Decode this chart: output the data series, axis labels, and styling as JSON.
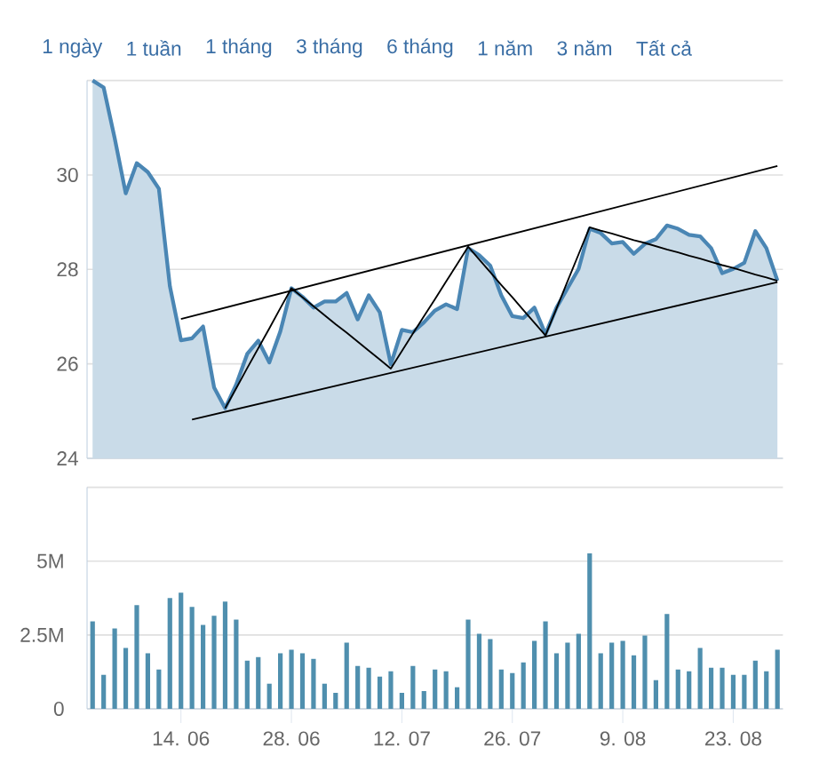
{
  "chart_data": [
    {
      "type": "other",
      "annotations": [
        "1 ngày",
        "1 tuần",
        "1 tháng",
        "3 tháng",
        "6 tháng",
        "1 năm",
        "3 năm",
        "Tất cả"
      ]
    },
    {
      "type": "area",
      "categories": [
        null,
        null,
        null,
        null,
        null,
        null,
        null,
        null,
        null,
        null,
        null,
        null,
        null,
        null,
        null,
        null,
        null,
        null,
        null,
        null,
        null,
        null,
        null,
        null,
        null,
        null,
        null,
        null,
        null,
        null,
        null,
        null,
        null,
        null,
        null,
        null,
        null,
        null,
        null,
        null,
        null,
        null,
        null,
        null,
        null,
        null,
        null,
        null,
        null,
        null,
        null,
        null,
        null,
        null,
        null,
        null,
        null,
        null,
        null,
        null,
        null,
        null,
        null
      ],
      "series": [
        {
          "type": "area",
          "color": "#4a86b4",
          "values": [
            32.0,
            31.85,
            30.78,
            29.61,
            30.25,
            30.06,
            29.71,
            27.64,
            26.5,
            26.54,
            26.79,
            25.5,
            25.06,
            25.56,
            26.21,
            26.49,
            26.03,
            26.69,
            27.6,
            27.42,
            27.19,
            27.32,
            27.32,
            27.5,
            26.94,
            27.45,
            27.09,
            25.99,
            26.72,
            26.67,
            26.88,
            27.13,
            27.26,
            27.16,
            28.45,
            28.3,
            28.08,
            27.45,
            27.01,
            26.97,
            27.19,
            26.63,
            27.19,
            27.6,
            28.01,
            28.86,
            28.77,
            28.55,
            28.58,
            28.33,
            28.54,
            28.64,
            28.93,
            28.86,
            28.73,
            28.7,
            28.45,
            27.92,
            28.01,
            28.14,
            28.81,
            28.45,
            27.76
          ]
        },
        {
          "type": "line",
          "color": "#000000",
          "values": [
            null,
            null,
            null,
            null,
            null,
            null,
            null,
            null,
            26.95,
            null,
            null,
            null,
            null,
            null,
            null,
            null,
            null,
            null,
            null,
            null,
            null,
            null,
            null,
            null,
            null,
            null,
            null,
            null,
            null,
            null,
            null,
            null,
            null,
            null,
            null,
            null,
            null,
            null,
            null,
            null,
            null,
            null,
            null,
            null,
            null,
            null,
            null,
            null,
            null,
            null,
            null,
            null,
            null,
            null,
            null,
            null,
            null,
            null,
            null,
            null,
            null,
            null,
            30.19
          ]
        },
        {
          "type": "line",
          "color": "#000000",
          "values": [
            null,
            null,
            null,
            null,
            null,
            null,
            null,
            null,
            null,
            24.82,
            null,
            null,
            null,
            null,
            null,
            null,
            null,
            null,
            null,
            null,
            null,
            null,
            null,
            null,
            null,
            null,
            null,
            null,
            null,
            null,
            null,
            null,
            null,
            null,
            null,
            null,
            null,
            null,
            null,
            null,
            null,
            null,
            null,
            null,
            null,
            null,
            null,
            null,
            null,
            null,
            null,
            null,
            null,
            null,
            null,
            null,
            null,
            null,
            null,
            null,
            null,
            null,
            27.73
          ]
        },
        {
          "type": "line",
          "color": "#000000",
          "values": [
            null,
            null,
            null,
            null,
            null,
            null,
            null,
            null,
            null,
            null,
            null,
            null,
            25.06,
            25.48,
            25.91,
            26.33,
            26.75,
            27.18,
            27.6,
            27.41,
            27.22,
            27.03,
            26.84,
            26.66,
            26.47,
            26.28,
            26.09,
            25.9,
            26.27,
            26.64,
            27.01,
            27.37,
            27.74,
            28.11,
            28.48,
            28.21,
            27.94,
            27.67,
            27.41,
            27.14,
            26.87,
            26.6,
            27.17,
            27.75,
            28.32,
            28.89,
            28.82,
            28.76,
            28.69,
            28.62,
            28.56,
            28.49,
            28.42,
            28.36,
            28.29,
            28.23,
            28.16,
            28.09,
            28.03,
            27.96,
            27.89,
            27.83,
            27.76
          ]
        }
      ],
      "ylim": [
        24,
        32
      ],
      "yticks": [
        24,
        26,
        28,
        30,
        {
          "value": 32,
          "label": null
        }
      ],
      "grid": "y",
      "tick_labels": "y"
    },
    {
      "type": "bar",
      "categories": [
        null,
        null,
        null,
        null,
        null,
        null,
        null,
        null,
        "14. 06",
        null,
        null,
        null,
        null,
        null,
        null,
        null,
        null,
        null,
        "28. 06",
        null,
        null,
        null,
        null,
        null,
        null,
        null,
        null,
        null,
        "12. 07",
        null,
        null,
        null,
        null,
        null,
        null,
        null,
        null,
        null,
        "26. 07",
        null,
        null,
        null,
        null,
        null,
        null,
        null,
        null,
        null,
        "9. 08",
        null,
        null,
        null,
        null,
        null,
        null,
        null,
        null,
        null,
        "23. 08",
        null,
        null,
        null,
        null
      ],
      "color": "#4f8fae",
      "values": [
        2.96,
        1.15,
        2.72,
        2.06,
        3.51,
        1.88,
        1.33,
        3.75,
        3.93,
        3.45,
        2.84,
        3.15,
        3.63,
        3.02,
        1.63,
        1.75,
        0.85,
        1.88,
        2.0,
        1.88,
        1.69,
        0.85,
        0.54,
        2.24,
        1.45,
        1.39,
        1.09,
        1.27,
        0.54,
        1.45,
        0.6,
        1.33,
        1.27,
        0.73,
        3.02,
        2.54,
        2.36,
        1.33,
        1.21,
        1.57,
        2.3,
        2.96,
        1.88,
        2.24,
        2.54,
        5.26,
        1.88,
        2.24,
        2.3,
        1.81,
        2.48,
        0.97,
        3.21,
        1.33,
        1.27,
        2.06,
        1.39,
        1.39,
        1.15,
        1.15,
        1.63,
        1.27,
        2.0
      ],
      "ylim": [
        0,
        7.5
      ],
      "yticks": [
        {
          "value": 0,
          "label": "0"
        },
        {
          "value": 2.5,
          "label": "2.5M"
        },
        {
          "value": 5,
          "label": "5M"
        },
        {
          "value": 7.5,
          "label": null
        }
      ],
      "grid": "y"
    }
  ]
}
